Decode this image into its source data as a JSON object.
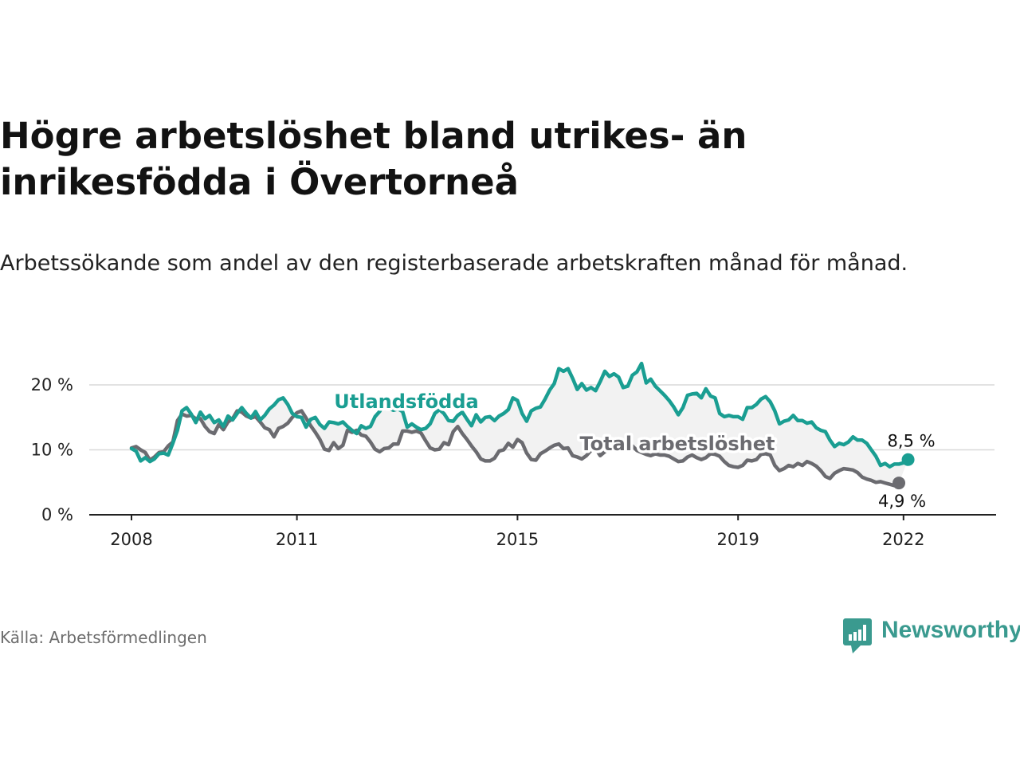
{
  "title": "Högre arbetslöshet bland utrikes- än inrikesfödda i Övertorneå",
  "subtitle": "Arbetssökande som andel av den registerbaserade arbetskraften månad för månad.",
  "source": "Källa: Arbetsförmedlingen",
  "brand": {
    "name": "Newsworthy",
    "icon": "newsworthy-logo-icon",
    "color": "#3a9a8f"
  },
  "colors": {
    "utlandsfodda": "#1a9e92",
    "total": "#6b6b70",
    "grid": "#d9d9d9",
    "axis": "#222222",
    "band": "#f2f2f2"
  },
  "chart_data": {
    "type": "line",
    "x_start": 2008.0,
    "x_step_years": 0.0833333,
    "ylim": [
      0,
      20
    ],
    "y_ticks": [
      0,
      10,
      20
    ],
    "y_tick_labels": [
      "0 %",
      "10 %",
      "20 %"
    ],
    "x_ticks": [
      2008,
      2011,
      2015,
      2019,
      2022
    ],
    "x_tick_labels": [
      "2008",
      "2011",
      "2015",
      "2019",
      "2022"
    ],
    "series": [
      {
        "name": "Utlandsfödda",
        "label": "Utlandsfödda",
        "color": "#1a9e92",
        "end_label": "8,5 %",
        "values": [
          10.2,
          9.8,
          8.3,
          8.8,
          8.2,
          8.6,
          9.4,
          9.5,
          9.2,
          11.0,
          13.0,
          16.0,
          16.5,
          15.5,
          14.2,
          15.8,
          14.8,
          15.3,
          14.2,
          14.6,
          13.6,
          15.2,
          14.6,
          15.6,
          16.5,
          15.6,
          14.9,
          15.9,
          14.6,
          15.3,
          16.3,
          16.9,
          17.7,
          18.0,
          17.0,
          15.6,
          15.1,
          15.0,
          13.5,
          14.7,
          15.0,
          13.9,
          13.3,
          14.3,
          14.2,
          14.0,
          14.3,
          13.6,
          13.0,
          12.5,
          13.7,
          13.3,
          13.6,
          15.1,
          15.9,
          17.2,
          16.4,
          16.1,
          16.3,
          15.9,
          13.5,
          14.0,
          13.5,
          13.1,
          13.3,
          14.0,
          15.6,
          16.2,
          15.6,
          14.5,
          14.4,
          15.3,
          15.8,
          14.7,
          13.7,
          15.4,
          14.3,
          15.0,
          15.1,
          14.5,
          15.2,
          15.6,
          16.2,
          18.0,
          17.6,
          15.6,
          14.4,
          16.0,
          16.4,
          16.6,
          17.8,
          19.2,
          20.2,
          22.5,
          22.1,
          22.5,
          21.0,
          19.3,
          20.2,
          19.2,
          19.6,
          19.1,
          20.5,
          22.1,
          21.3,
          21.7,
          21.2,
          19.6,
          19.8,
          21.5,
          22.0,
          23.3,
          20.3,
          20.9,
          19.8,
          19.1,
          18.4,
          17.6,
          16.6,
          15.4,
          16.5,
          18.4,
          18.6,
          18.7,
          18.0,
          19.4,
          18.3,
          18.0,
          15.6,
          15.1,
          15.3,
          15.1,
          15.1,
          14.7,
          16.5,
          16.5,
          17.0,
          17.8,
          18.2,
          17.4,
          16.0,
          14.0,
          14.4,
          14.6,
          15.3,
          14.5,
          14.5,
          14.1,
          14.3,
          13.4,
          13.0,
          12.8,
          11.5,
          10.5,
          11.0,
          10.8,
          11.2,
          12.0,
          11.5,
          11.5,
          11.0,
          10.0,
          9.0,
          7.6,
          7.9,
          7.4,
          7.8,
          7.8,
          8.0,
          8.5
        ]
      },
      {
        "name": "Total arbetslöshet",
        "label": "Total arbetslöshet",
        "color": "#6b6b70",
        "end_label": "4,9 %",
        "values": [
          10.3,
          10.5,
          10.0,
          9.6,
          8.4,
          8.9,
          9.6,
          9.7,
          10.6,
          11.2,
          14.5,
          15.5,
          15.2,
          15.3,
          14.8,
          14.8,
          13.6,
          12.8,
          12.5,
          13.9,
          13.1,
          14.3,
          14.8,
          16.0,
          15.8,
          15.2,
          14.9,
          15.1,
          14.3,
          13.4,
          13.1,
          12.0,
          13.3,
          13.6,
          14.1,
          15.0,
          15.7,
          16.0,
          14.9,
          13.7,
          12.7,
          11.6,
          10.1,
          9.9,
          11.1,
          10.2,
          10.7,
          13.0,
          12.7,
          13.0,
          12.3,
          12.1,
          11.2,
          10.1,
          9.7,
          10.2,
          10.3,
          10.9,
          10.9,
          12.9,
          12.9,
          12.7,
          12.9,
          12.6,
          11.4,
          10.3,
          10.0,
          10.1,
          11.1,
          10.8,
          12.8,
          13.6,
          12.5,
          11.6,
          10.6,
          9.7,
          8.6,
          8.3,
          8.3,
          8.7,
          9.8,
          10.0,
          11.0,
          10.4,
          11.6,
          11.1,
          9.5,
          8.5,
          8.4,
          9.4,
          9.8,
          10.3,
          10.7,
          10.9,
          10.2,
          10.3,
          9.1,
          8.9,
          8.6,
          9.1,
          9.9,
          10.2,
          9.1,
          9.7,
          10.2,
          10.0,
          10.5,
          10.7,
          10.8,
          10.6,
          9.9,
          9.6,
          9.3,
          9.1,
          9.4,
          9.2,
          9.2,
          9.0,
          8.6,
          8.2,
          8.3,
          8.9,
          9.2,
          8.8,
          8.5,
          8.8,
          9.4,
          9.3,
          9.0,
          8.2,
          7.6,
          7.4,
          7.3,
          7.6,
          8.4,
          8.3,
          8.5,
          9.3,
          9.4,
          9.2,
          7.6,
          6.8,
          7.1,
          7.6,
          7.4,
          7.9,
          7.6,
          8.2,
          7.9,
          7.5,
          6.8,
          5.9,
          5.6,
          6.4,
          6.8,
          7.1,
          7.0,
          6.9,
          6.5,
          5.8,
          5.5,
          5.3,
          5.0,
          5.1,
          4.9,
          4.7,
          4.5,
          4.9
        ]
      }
    ]
  }
}
